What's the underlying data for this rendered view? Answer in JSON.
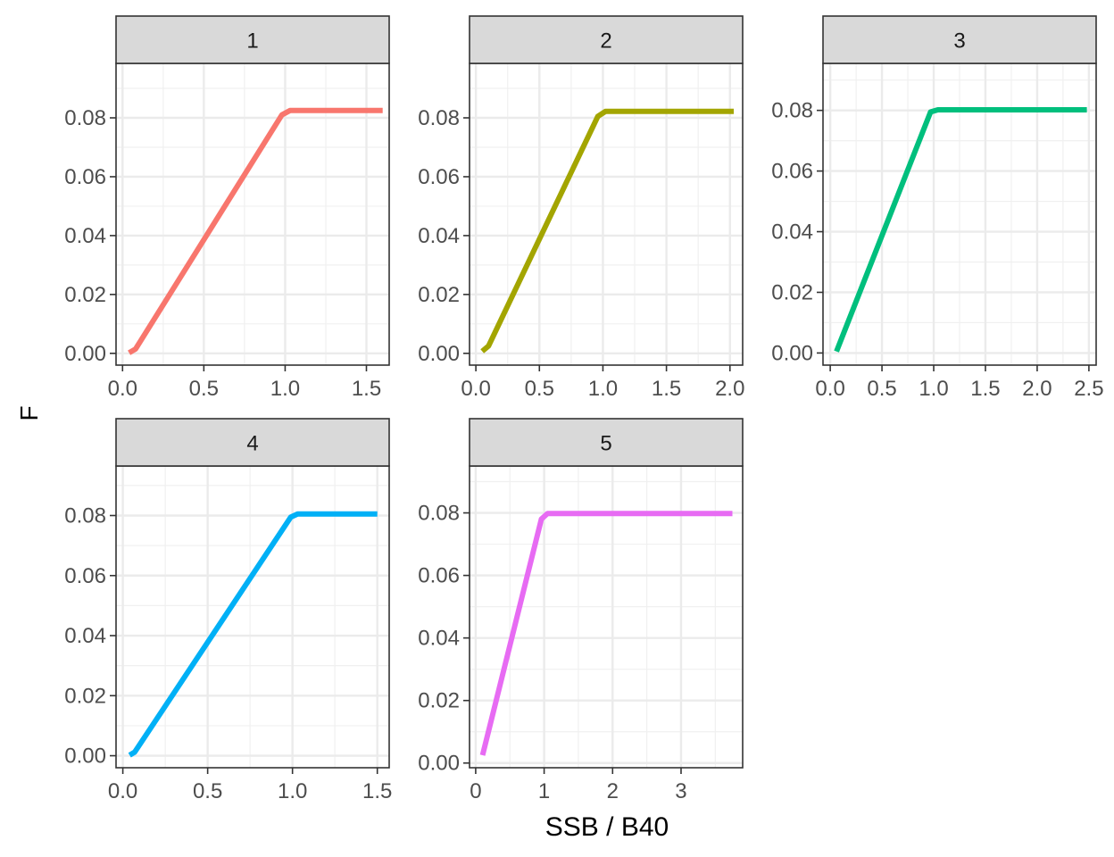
{
  "chart_data": {
    "type": "line",
    "title": "",
    "xlabel": "SSB / B40",
    "ylabel": "F",
    "grid": true,
    "facets": [
      {
        "label": "1",
        "color": "#F8766D",
        "xlim": [
          -0.04,
          1.64
        ],
        "ylim": [
          -0.004,
          0.0985
        ],
        "xticks": [
          {
            "v": 0.0,
            "label": "0.0"
          },
          {
            "v": 0.5,
            "label": "0.5"
          },
          {
            "v": 1.0,
            "label": "1.0"
          },
          {
            "v": 1.5,
            "label": "1.5"
          }
        ],
        "yticks": [
          {
            "v": 0.0,
            "label": "0.00"
          },
          {
            "v": 0.02,
            "label": "0.02"
          },
          {
            "v": 0.04,
            "label": "0.04"
          },
          {
            "v": 0.06,
            "label": "0.06"
          },
          {
            "v": 0.08,
            "label": "0.08"
          }
        ],
        "x": [
          0.04,
          0.08,
          0.98,
          1.03,
          1.6
        ],
        "y": [
          0.0002,
          0.0015,
          0.081,
          0.0825,
          0.0825
        ]
      },
      {
        "label": "2",
        "color": "#A3A500",
        "xlim": [
          -0.05,
          2.1
        ],
        "ylim": [
          -0.004,
          0.0985
        ],
        "xticks": [
          {
            "v": 0.0,
            "label": "0.0"
          },
          {
            "v": 0.5,
            "label": "0.5"
          },
          {
            "v": 1.0,
            "label": "1.0"
          },
          {
            "v": 1.5,
            "label": "1.5"
          },
          {
            "v": 2.0,
            "label": "2.0"
          }
        ],
        "yticks": [
          {
            "v": 0.0,
            "label": "0.00"
          },
          {
            "v": 0.02,
            "label": "0.02"
          },
          {
            "v": 0.04,
            "label": "0.04"
          },
          {
            "v": 0.06,
            "label": "0.06"
          },
          {
            "v": 0.08,
            "label": "0.08"
          }
        ],
        "x": [
          0.05,
          0.1,
          0.96,
          1.02,
          2.03
        ],
        "y": [
          0.0007,
          0.0025,
          0.0805,
          0.0822,
          0.0822
        ]
      },
      {
        "label": "3",
        "color": "#00BF7D",
        "xlim": [
          -0.07,
          2.57
        ],
        "ylim": [
          -0.004,
          0.0955
        ],
        "xticks": [
          {
            "v": 0.0,
            "label": "0.0"
          },
          {
            "v": 0.5,
            "label": "0.5"
          },
          {
            "v": 1.0,
            "label": "1.0"
          },
          {
            "v": 1.5,
            "label": "1.5"
          },
          {
            "v": 2.0,
            "label": "2.0"
          },
          {
            "v": 2.5,
            "label": "2.5"
          }
        ],
        "yticks": [
          {
            "v": 0.0,
            "label": "0.00"
          },
          {
            "v": 0.02,
            "label": "0.02"
          },
          {
            "v": 0.04,
            "label": "0.04"
          },
          {
            "v": 0.06,
            "label": "0.06"
          },
          {
            "v": 0.08,
            "label": "0.08"
          }
        ],
        "x": [
          0.06,
          0.97,
          1.04,
          2.48
        ],
        "y": [
          0.0005,
          0.0795,
          0.0802,
          0.0802
        ]
      },
      {
        "label": "4",
        "color": "#00B0F6",
        "xlim": [
          -0.04,
          1.57
        ],
        "ylim": [
          -0.004,
          0.0965
        ],
        "xticks": [
          {
            "v": 0.0,
            "label": "0.0"
          },
          {
            "v": 0.5,
            "label": "0.5"
          },
          {
            "v": 1.0,
            "label": "1.0"
          },
          {
            "v": 1.5,
            "label": "1.5"
          }
        ],
        "yticks": [
          {
            "v": 0.0,
            "label": "0.00"
          },
          {
            "v": 0.02,
            "label": "0.02"
          },
          {
            "v": 0.04,
            "label": "0.04"
          },
          {
            "v": 0.06,
            "label": "0.06"
          },
          {
            "v": 0.08,
            "label": "0.08"
          }
        ],
        "x": [
          0.04,
          0.07,
          0.99,
          1.03,
          1.5
        ],
        "y": [
          0.0002,
          0.0012,
          0.0795,
          0.0805,
          0.0805
        ]
      },
      {
        "label": "5",
        "color": "#E76BF3",
        "xlim": [
          -0.09,
          3.9
        ],
        "ylim": [
          -0.0015,
          0.095
        ],
        "xticks": [
          {
            "v": 0,
            "label": "0"
          },
          {
            "v": 1,
            "label": "1"
          },
          {
            "v": 2,
            "label": "2"
          },
          {
            "v": 3,
            "label": "3"
          }
        ],
        "yticks": [
          {
            "v": 0.0,
            "label": "0.00"
          },
          {
            "v": 0.02,
            "label": "0.02"
          },
          {
            "v": 0.04,
            "label": "0.04"
          },
          {
            "v": 0.06,
            "label": "0.06"
          },
          {
            "v": 0.08,
            "label": "0.08"
          }
        ],
        "x": [
          0.1,
          0.96,
          1.05,
          3.75
        ],
        "y": [
          0.0025,
          0.078,
          0.0798,
          0.0798
        ]
      }
    ]
  }
}
